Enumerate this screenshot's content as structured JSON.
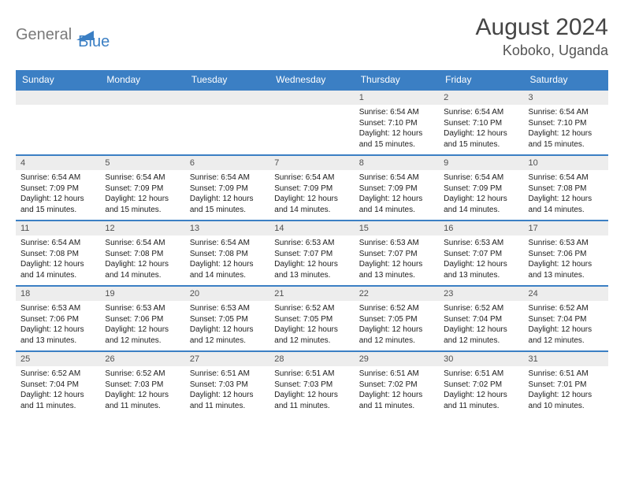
{
  "brand": {
    "part1": "General",
    "part2": "Blue"
  },
  "title": "August 2024",
  "location": "Koboko, Uganda",
  "colors": {
    "header_bg": "#3b7fc4",
    "header_text": "#ffffff",
    "daynum_bg": "#ededed",
    "row_border": "#3b7fc4",
    "body_text": "#202020",
    "month_text": "#454545",
    "logo_gray": "#7a7a7a",
    "logo_blue": "#3b7fc4",
    "page_bg": "#ffffff"
  },
  "typography": {
    "month_fontsize": 30,
    "location_fontsize": 18,
    "dow_fontsize": 12,
    "daynum_fontsize": 11,
    "cell_fontsize": 10
  },
  "weekdays": [
    "Sunday",
    "Monday",
    "Tuesday",
    "Wednesday",
    "Thursday",
    "Friday",
    "Saturday"
  ],
  "weeks": [
    [
      null,
      null,
      null,
      null,
      {
        "n": "1",
        "rise": "6:54 AM",
        "set": "7:10 PM",
        "dl": "12 hours and 15 minutes."
      },
      {
        "n": "2",
        "rise": "6:54 AM",
        "set": "7:10 PM",
        "dl": "12 hours and 15 minutes."
      },
      {
        "n": "3",
        "rise": "6:54 AM",
        "set": "7:10 PM",
        "dl": "12 hours and 15 minutes."
      }
    ],
    [
      {
        "n": "4",
        "rise": "6:54 AM",
        "set": "7:09 PM",
        "dl": "12 hours and 15 minutes."
      },
      {
        "n": "5",
        "rise": "6:54 AM",
        "set": "7:09 PM",
        "dl": "12 hours and 15 minutes."
      },
      {
        "n": "6",
        "rise": "6:54 AM",
        "set": "7:09 PM",
        "dl": "12 hours and 15 minutes."
      },
      {
        "n": "7",
        "rise": "6:54 AM",
        "set": "7:09 PM",
        "dl": "12 hours and 14 minutes."
      },
      {
        "n": "8",
        "rise": "6:54 AM",
        "set": "7:09 PM",
        "dl": "12 hours and 14 minutes."
      },
      {
        "n": "9",
        "rise": "6:54 AM",
        "set": "7:09 PM",
        "dl": "12 hours and 14 minutes."
      },
      {
        "n": "10",
        "rise": "6:54 AM",
        "set": "7:08 PM",
        "dl": "12 hours and 14 minutes."
      }
    ],
    [
      {
        "n": "11",
        "rise": "6:54 AM",
        "set": "7:08 PM",
        "dl": "12 hours and 14 minutes."
      },
      {
        "n": "12",
        "rise": "6:54 AM",
        "set": "7:08 PM",
        "dl": "12 hours and 14 minutes."
      },
      {
        "n": "13",
        "rise": "6:54 AM",
        "set": "7:08 PM",
        "dl": "12 hours and 14 minutes."
      },
      {
        "n": "14",
        "rise": "6:53 AM",
        "set": "7:07 PM",
        "dl": "12 hours and 13 minutes."
      },
      {
        "n": "15",
        "rise": "6:53 AM",
        "set": "7:07 PM",
        "dl": "12 hours and 13 minutes."
      },
      {
        "n": "16",
        "rise": "6:53 AM",
        "set": "7:07 PM",
        "dl": "12 hours and 13 minutes."
      },
      {
        "n": "17",
        "rise": "6:53 AM",
        "set": "7:06 PM",
        "dl": "12 hours and 13 minutes."
      }
    ],
    [
      {
        "n": "18",
        "rise": "6:53 AM",
        "set": "7:06 PM",
        "dl": "12 hours and 13 minutes."
      },
      {
        "n": "19",
        "rise": "6:53 AM",
        "set": "7:06 PM",
        "dl": "12 hours and 12 minutes."
      },
      {
        "n": "20",
        "rise": "6:53 AM",
        "set": "7:05 PM",
        "dl": "12 hours and 12 minutes."
      },
      {
        "n": "21",
        "rise": "6:52 AM",
        "set": "7:05 PM",
        "dl": "12 hours and 12 minutes."
      },
      {
        "n": "22",
        "rise": "6:52 AM",
        "set": "7:05 PM",
        "dl": "12 hours and 12 minutes."
      },
      {
        "n": "23",
        "rise": "6:52 AM",
        "set": "7:04 PM",
        "dl": "12 hours and 12 minutes."
      },
      {
        "n": "24",
        "rise": "6:52 AM",
        "set": "7:04 PM",
        "dl": "12 hours and 12 minutes."
      }
    ],
    [
      {
        "n": "25",
        "rise": "6:52 AM",
        "set": "7:04 PM",
        "dl": "12 hours and 11 minutes."
      },
      {
        "n": "26",
        "rise": "6:52 AM",
        "set": "7:03 PM",
        "dl": "12 hours and 11 minutes."
      },
      {
        "n": "27",
        "rise": "6:51 AM",
        "set": "7:03 PM",
        "dl": "12 hours and 11 minutes."
      },
      {
        "n": "28",
        "rise": "6:51 AM",
        "set": "7:03 PM",
        "dl": "12 hours and 11 minutes."
      },
      {
        "n": "29",
        "rise": "6:51 AM",
        "set": "7:02 PM",
        "dl": "12 hours and 11 minutes."
      },
      {
        "n": "30",
        "rise": "6:51 AM",
        "set": "7:02 PM",
        "dl": "12 hours and 11 minutes."
      },
      {
        "n": "31",
        "rise": "6:51 AM",
        "set": "7:01 PM",
        "dl": "12 hours and 10 minutes."
      }
    ]
  ],
  "labels": {
    "sunrise": "Sunrise:",
    "sunset": "Sunset:",
    "daylight": "Daylight:"
  }
}
